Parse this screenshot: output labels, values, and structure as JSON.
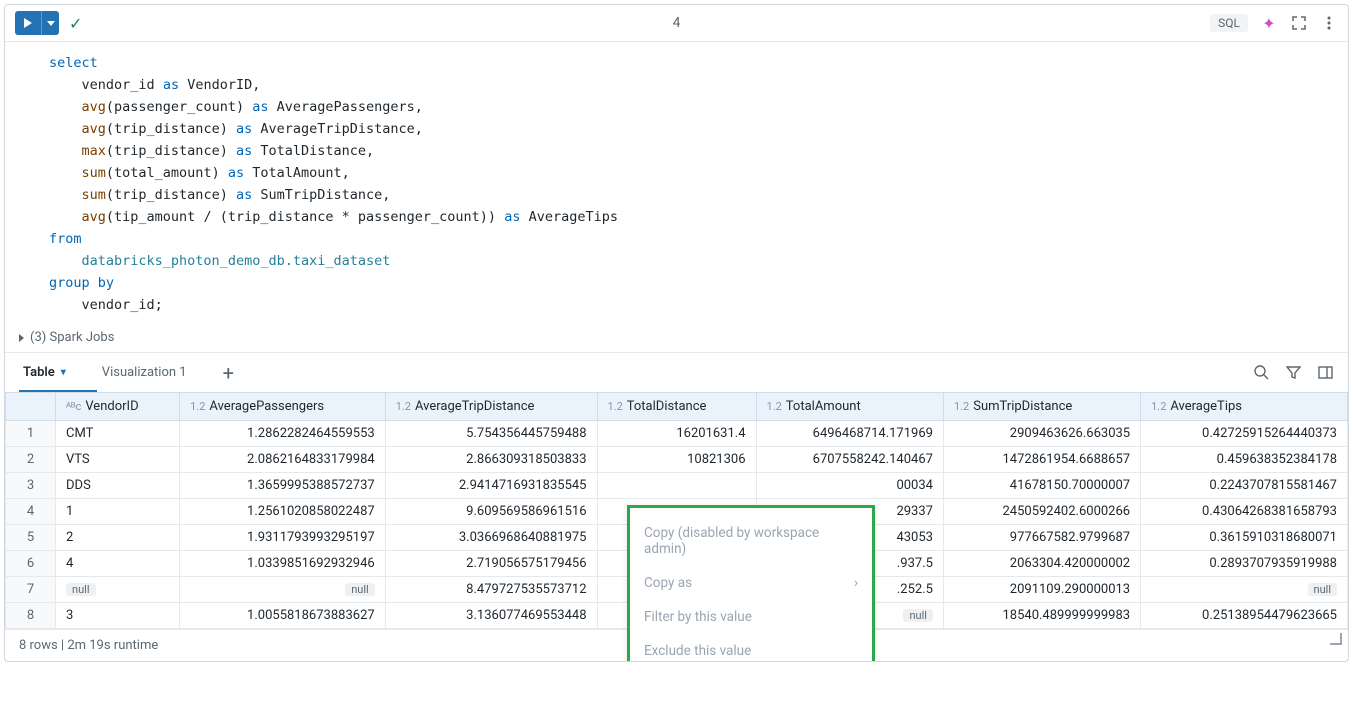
{
  "toolbar": {
    "cell_number": "4",
    "sql_badge": "SQL"
  },
  "sql": {
    "kw_select": "select",
    "l1_a": "vendor_id",
    "l1_as": "as",
    "l1_b": "VendorID,",
    "l2_fn": "avg",
    "l2_arg": "(passenger_count)",
    "l2_as": "as",
    "l2_b": "AveragePassengers,",
    "l3_fn": "avg",
    "l3_arg": "(trip_distance)",
    "l3_as": "as",
    "l3_b": "AverageTripDistance,",
    "l4_fn": "max",
    "l4_arg": "(trip_distance)",
    "l4_as": "as",
    "l4_b": "TotalDistance,",
    "l5_fn": "sum",
    "l5_arg": "(total_amount)",
    "l5_as": "as",
    "l5_b": "TotalAmount,",
    "l6_fn": "sum",
    "l6_arg": "(trip_distance)",
    "l6_as": "as",
    "l6_b": "SumTripDistance,",
    "l7_fn": "avg",
    "l7_arg": "(tip_amount / (trip_distance * passenger_count))",
    "l7_as": "as",
    "l7_b": "AverageTips",
    "kw_from": "from",
    "table": "databricks_photon_demo_db.taxi_dataset",
    "kw_group": "group by",
    "group_col": "vendor_id;"
  },
  "spark_jobs": "(3) Spark Jobs",
  "tabs": {
    "table": "Table",
    "viz1": "Visualization 1"
  },
  "headers": {
    "vendor": "VendorID",
    "avgpass": "AveragePassengers",
    "avgtrip": "AverageTripDistance",
    "totdist": "TotalDistance",
    "totamt": "TotalAmount",
    "sumtrip": "SumTripDistance",
    "avgtips": "AverageTips"
  },
  "type_str": "ᴬᴮc",
  "type_num": "1.2",
  "null_label": "null",
  "rows": [
    {
      "n": "1",
      "v": "CMT",
      "ap": "1.2862282464559553",
      "at": "5.754356445759488",
      "td": "16201631.4",
      "ta": "6496468714.171969",
      "st": "2909463626.663035",
      "ati": "0.42725915264440373"
    },
    {
      "n": "2",
      "v": "VTS",
      "ap": "2.0862164833179984",
      "at": "2.866309318503833",
      "td": "10821306",
      "ta": "6707558242.140467",
      "st": "1472861954.6688657",
      "ati": "0.459638352384178"
    },
    {
      "n": "3",
      "v": "DDS",
      "ap": "1.3659995388572737",
      "at": "2.9414716931835545",
      "td": "",
      "ta": "00034",
      "st": "41678150.70000007",
      "ati": "0.2243707815581467"
    },
    {
      "n": "4",
      "v": "1",
      "ap": "1.2561020858022487",
      "at": "9.609569586961516",
      "td": "",
      "ta": "29337",
      "st": "2450592402.6000266",
      "ati": "0.43064268381658793"
    },
    {
      "n": "5",
      "v": "2",
      "ap": "1.9311793993295197",
      "at": "3.0366968640881975",
      "td": "",
      "ta": "43053",
      "st": "977667582.9799687",
      "ati": "0.3615910318680071"
    },
    {
      "n": "6",
      "v": "4",
      "ap": "1.0339851692932946",
      "at": "2.719056575179456",
      "td": "",
      "ta": ".937.5",
      "st": "2063304.420000002",
      "ati": "0.2893707935919988"
    },
    {
      "n": "7",
      "v": "null",
      "ap": "null",
      "at": "8.479727535573712",
      "td": "",
      "ta": ".252.5",
      "st": "2091109.290000013",
      "ati": "null"
    },
    {
      "n": "8",
      "v": "3",
      "ap": "1.0055818673883627",
      "at": "3.136077469553448",
      "td": "",
      "ta": "null",
      "st": "18540.489999999983",
      "ati": "0.25138954479623665"
    }
  ],
  "context": {
    "copy_disabled": "Copy (disabled by workspace admin)",
    "copy_as": "Copy as",
    "filter": "Filter by this value",
    "exclude": "Exclude this value",
    "toggle": "Toggle side panel"
  },
  "status": "8 rows  |  2m 19s runtime"
}
